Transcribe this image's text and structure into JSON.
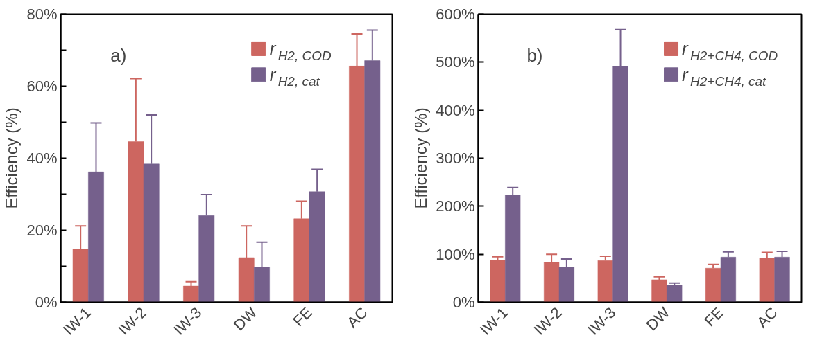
{
  "chart_data": [
    {
      "type": "bar",
      "annotations": [
        "a)"
      ],
      "ylabel": "Efficiency (%)",
      "legend": "top right",
      "categories": [
        "IW-1",
        "IW-2",
        "IW-3",
        "DW",
        "FE",
        "AC"
      ],
      "ylim": [
        0,
        80
      ],
      "yticks": [
        {
          "value": 0,
          "label": "0%"
        },
        {
          "value": 10,
          "label": null
        },
        {
          "value": 20,
          "label": "20%"
        },
        {
          "value": 30,
          "label": null
        },
        {
          "value": 40,
          "label": "40%"
        },
        {
          "value": 50,
          "label": null
        },
        {
          "value": 60,
          "label": "60%"
        },
        {
          "value": 70,
          "label": null
        },
        {
          "value": 80,
          "label": "80%"
        }
      ],
      "series": [
        {
          "name": "r$_{H2, COD}$",
          "color": "#cd6660",
          "values": [
            14.8,
            44.6,
            4.5,
            12.4,
            23.2,
            65.6
          ],
          "errors": [
            [
              14.8,
              21.2
            ],
            [
              44.6,
              62.1
            ],
            [
              4.5,
              5.7
            ],
            [
              12.4,
              21.2
            ],
            [
              23.2,
              28.1
            ],
            [
              65.6,
              74.5
            ]
          ]
        },
        {
          "name": "r$_{H2, cat}$",
          "color": "#75608c",
          "values": [
            36.2,
            38.4,
            24.1,
            9.8,
            30.7,
            67.1
          ],
          "errors": [
            [
              36.2,
              49.8
            ],
            [
              38.4,
              52.0
            ],
            [
              24.1,
              29.9
            ],
            [
              9.8,
              16.7
            ],
            [
              30.7,
              36.9
            ],
            [
              67.1,
              75.6
            ]
          ]
        }
      ]
    },
    {
      "type": "bar",
      "annotations": [
        "b)"
      ],
      "ylabel": "Efficiency (%)",
      "legend": "top right",
      "categories": [
        "IW-1",
        "IW-2",
        "IW-3",
        "DW",
        "FE",
        "AC"
      ],
      "ylim": [
        0,
        600
      ],
      "yticks": [
        {
          "value": 0,
          "label": "0%"
        },
        {
          "value": 100,
          "label": "100%"
        },
        {
          "value": 200,
          "label": "200%"
        },
        {
          "value": 300,
          "label": "300%"
        },
        {
          "value": 400,
          "label": "400%"
        },
        {
          "value": 500,
          "label": "500%"
        },
        {
          "value": 600,
          "label": "600%"
        }
      ],
      "series": [
        {
          "name": "r$_{H2+CH4, COD}$",
          "color": "#cd6660",
          "values": [
            88,
            83,
            87,
            47,
            71,
            92
          ],
          "errors": [
            [
              88,
              95
            ],
            [
              83,
              100
            ],
            [
              87,
              96
            ],
            [
              47,
              53
            ],
            [
              71,
              79
            ],
            [
              92,
              104
            ]
          ]
        },
        {
          "name": "r$_{H2+CH4, cat}$",
          "color": "#75608c",
          "values": [
            223,
            73,
            491,
            36,
            94,
            94
          ],
          "errors": [
            [
              223,
              239
            ],
            [
              73,
              90
            ],
            [
              491,
              568
            ],
            [
              36,
              40
            ],
            [
              94,
              105
            ],
            [
              94,
              106
            ]
          ]
        }
      ]
    }
  ]
}
